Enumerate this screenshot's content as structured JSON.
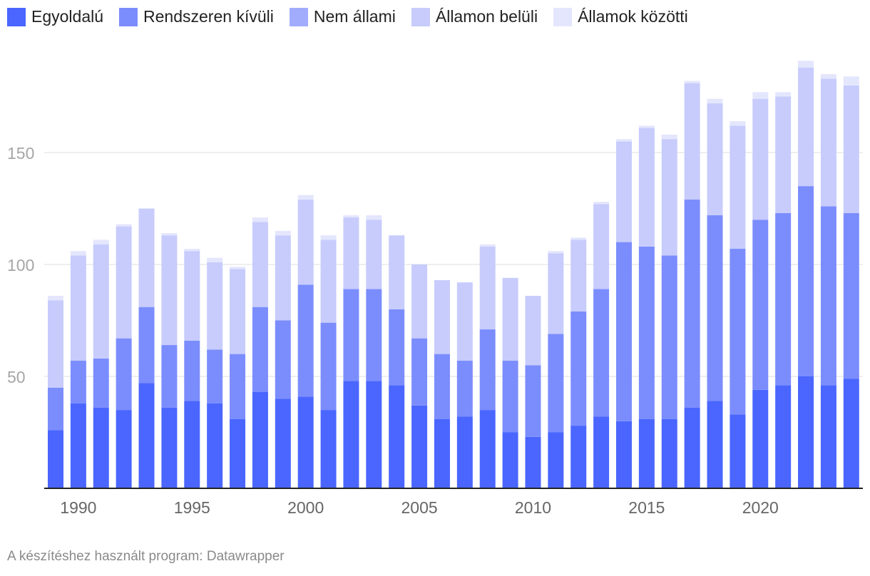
{
  "chart_data": {
    "type": "bar",
    "stacked": true,
    "title": "",
    "xlabel": "",
    "ylabel": "",
    "ylim": [
      0,
      190
    ],
    "yticks": [
      50,
      100,
      150
    ],
    "xticks": [
      1990,
      1995,
      2000,
      2005,
      2010,
      2015,
      2020
    ],
    "grid": true,
    "legend_position": "top-left",
    "categories": [
      1989,
      1990,
      1991,
      1992,
      1993,
      1994,
      1995,
      1996,
      1997,
      1998,
      1999,
      2000,
      2001,
      2002,
      2003,
      2004,
      2005,
      2006,
      2007,
      2008,
      2009,
      2010,
      2011,
      2012,
      2013,
      2014,
      2015,
      2016,
      2017,
      2018,
      2019,
      2020,
      2021,
      2022,
      2023,
      2024
    ],
    "series": [
      {
        "name": "Egyoldalú",
        "color": "#4a66ff",
        "values": [
          26,
          38,
          36,
          35,
          47,
          36,
          39,
          38,
          31,
          43,
          40,
          41,
          35,
          48,
          48,
          46,
          37,
          31,
          32,
          35,
          25,
          23,
          25,
          28,
          32,
          30,
          31,
          31,
          36,
          39,
          33,
          44,
          46,
          50,
          46,
          49
        ]
      },
      {
        "name": "Rendszeren kívüli",
        "color": "#7b8dfd",
        "values": [
          19,
          19,
          22,
          32,
          34,
          28,
          27,
          24,
          29,
          38,
          35,
          50,
          39,
          41,
          41,
          34,
          30,
          29,
          25,
          36,
          32,
          32,
          44,
          51,
          57,
          80,
          77,
          73,
          93,
          83,
          74,
          76,
          77,
          85,
          80,
          74
        ]
      },
      {
        "name": "Nem állami",
        "color": "#a1acfc",
        "values": [
          0,
          0,
          0,
          0,
          0,
          0,
          0,
          0,
          0,
          0,
          0,
          0,
          0,
          0,
          0,
          0,
          0,
          0,
          0,
          0,
          0,
          0,
          0,
          0,
          0,
          0,
          0,
          0,
          0,
          0,
          0,
          0,
          0,
          0,
          0,
          0
        ]
      },
      {
        "name": "Államon belüli",
        "color": "#c7ccfc",
        "values": [
          39,
          47,
          51,
          50,
          44,
          49,
          40,
          39,
          38,
          38,
          38,
          38,
          37,
          32,
          31,
          33,
          33,
          33,
          35,
          37,
          37,
          31,
          36,
          32,
          38,
          45,
          53,
          52,
          52,
          50,
          55,
          54,
          52,
          53,
          57,
          57
        ]
      },
      {
        "name": "Államok közötti",
        "color": "#e4e6fd",
        "values": [
          2,
          2,
          2,
          1,
          0,
          1,
          1,
          2,
          1,
          2,
          2,
          2,
          2,
          1,
          2,
          0,
          0,
          0,
          0,
          1,
          0,
          0,
          1,
          1,
          1,
          1,
          1,
          2,
          1,
          2,
          2,
          3,
          2,
          3,
          2,
          4
        ]
      }
    ]
  },
  "footer": {
    "text": "A készítéshez használt program: Datawrapper"
  }
}
